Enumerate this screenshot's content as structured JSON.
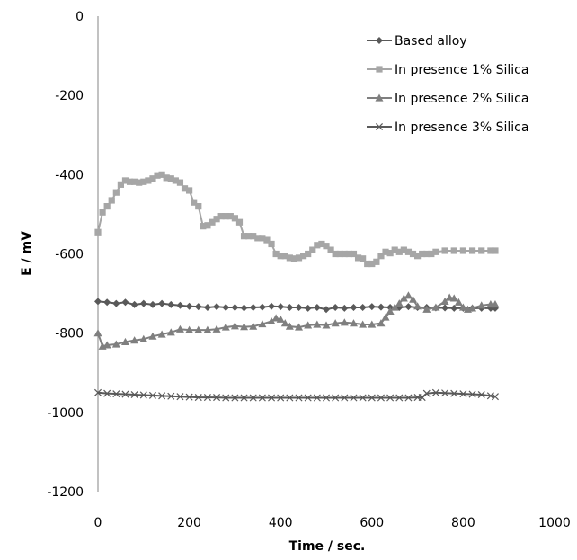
{
  "chart_data": {
    "type": "line",
    "title": "",
    "xlabel": "Time / sec.",
    "ylabel": "E / mV",
    "xlim": [
      0,
      1000
    ],
    "ylim": [
      -1200,
      0
    ],
    "xticks": [
      0,
      200,
      400,
      600,
      800,
      1000
    ],
    "yticks": [
      0,
      -200,
      -400,
      -600,
      -800,
      -1000,
      -1200
    ],
    "grid": false,
    "legend_position": "top-right",
    "series": [
      {
        "name": "Based alloy",
        "marker": "diamond",
        "color": "#595959",
        "points": [
          [
            0,
            -720
          ],
          [
            20,
            -722
          ],
          [
            40,
            -725
          ],
          [
            60,
            -722
          ],
          [
            80,
            -728
          ],
          [
            100,
            -725
          ],
          [
            120,
            -728
          ],
          [
            140,
            -725
          ],
          [
            160,
            -728
          ],
          [
            180,
            -730
          ],
          [
            200,
            -732
          ],
          [
            220,
            -733
          ],
          [
            240,
            -735
          ],
          [
            260,
            -733
          ],
          [
            280,
            -735
          ],
          [
            300,
            -735
          ],
          [
            320,
            -736
          ],
          [
            340,
            -735
          ],
          [
            360,
            -734
          ],
          [
            380,
            -732
          ],
          [
            400,
            -733
          ],
          [
            420,
            -735
          ],
          [
            440,
            -735
          ],
          [
            460,
            -737
          ],
          [
            480,
            -735
          ],
          [
            500,
            -740
          ],
          [
            520,
            -735
          ],
          [
            540,
            -737
          ],
          [
            560,
            -735
          ],
          [
            580,
            -735
          ],
          [
            600,
            -733
          ],
          [
            620,
            -734
          ],
          [
            640,
            -735
          ],
          [
            660,
            -735
          ],
          [
            680,
            -733
          ],
          [
            700,
            -735
          ],
          [
            720,
            -735
          ],
          [
            740,
            -736
          ],
          [
            760,
            -736
          ],
          [
            780,
            -737
          ],
          [
            800,
            -737
          ],
          [
            820,
            -737
          ],
          [
            840,
            -737
          ],
          [
            860,
            -737
          ],
          [
            870,
            -737
          ]
        ]
      },
      {
        "name": "In presence 1% Silica",
        "marker": "square",
        "color": "#a6a6a6",
        "points": [
          [
            0,
            -545
          ],
          [
            10,
            -495
          ],
          [
            20,
            -480
          ],
          [
            30,
            -465
          ],
          [
            40,
            -445
          ],
          [
            50,
            -425
          ],
          [
            60,
            -415
          ],
          [
            70,
            -418
          ],
          [
            80,
            -418
          ],
          [
            90,
            -420
          ],
          [
            100,
            -418
          ],
          [
            110,
            -415
          ],
          [
            120,
            -410
          ],
          [
            130,
            -402
          ],
          [
            140,
            -400
          ],
          [
            150,
            -408
          ],
          [
            160,
            -410
          ],
          [
            170,
            -415
          ],
          [
            180,
            -420
          ],
          [
            190,
            -435
          ],
          [
            200,
            -440
          ],
          [
            210,
            -470
          ],
          [
            220,
            -480
          ],
          [
            230,
            -530
          ],
          [
            240,
            -528
          ],
          [
            250,
            -520
          ],
          [
            260,
            -512
          ],
          [
            270,
            -505
          ],
          [
            280,
            -505
          ],
          [
            290,
            -505
          ],
          [
            300,
            -510
          ],
          [
            310,
            -520
          ],
          [
            320,
            -555
          ],
          [
            330,
            -555
          ],
          [
            340,
            -555
          ],
          [
            350,
            -560
          ],
          [
            360,
            -560
          ],
          [
            370,
            -565
          ],
          [
            380,
            -575
          ],
          [
            390,
            -600
          ],
          [
            400,
            -605
          ],
          [
            410,
            -605
          ],
          [
            420,
            -610
          ],
          [
            430,
            -612
          ],
          [
            440,
            -610
          ],
          [
            450,
            -605
          ],
          [
            460,
            -600
          ],
          [
            470,
            -590
          ],
          [
            480,
            -578
          ],
          [
            490,
            -575
          ],
          [
            500,
            -580
          ],
          [
            510,
            -590
          ],
          [
            520,
            -600
          ],
          [
            530,
            -600
          ],
          [
            540,
            -600
          ],
          [
            550,
            -600
          ],
          [
            560,
            -600
          ],
          [
            570,
            -610
          ],
          [
            580,
            -612
          ],
          [
            590,
            -625
          ],
          [
            600,
            -625
          ],
          [
            610,
            -620
          ],
          [
            620,
            -605
          ],
          [
            630,
            -595
          ],
          [
            640,
            -598
          ],
          [
            650,
            -590
          ],
          [
            660,
            -595
          ],
          [
            670,
            -590
          ],
          [
            680,
            -595
          ],
          [
            690,
            -600
          ],
          [
            700,
            -605
          ],
          [
            710,
            -600
          ],
          [
            720,
            -600
          ],
          [
            730,
            -600
          ],
          [
            740,
            -595
          ],
          [
            760,
            -592
          ],
          [
            780,
            -592
          ],
          [
            800,
            -592
          ],
          [
            820,
            -592
          ],
          [
            840,
            -592
          ],
          [
            860,
            -592
          ],
          [
            870,
            -592
          ]
        ]
      },
      {
        "name": "In presence 2% Silica",
        "marker": "triangle",
        "color": "#7f7f7f",
        "points": [
          [
            0,
            -800
          ],
          [
            10,
            -833
          ],
          [
            20,
            -830
          ],
          [
            40,
            -828
          ],
          [
            60,
            -822
          ],
          [
            80,
            -818
          ],
          [
            100,
            -815
          ],
          [
            120,
            -808
          ],
          [
            140,
            -803
          ],
          [
            160,
            -798
          ],
          [
            180,
            -790
          ],
          [
            200,
            -792
          ],
          [
            220,
            -792
          ],
          [
            240,
            -792
          ],
          [
            260,
            -790
          ],
          [
            280,
            -785
          ],
          [
            300,
            -782
          ],
          [
            320,
            -784
          ],
          [
            340,
            -783
          ],
          [
            360,
            -777
          ],
          [
            380,
            -770
          ],
          [
            390,
            -762
          ],
          [
            400,
            -765
          ],
          [
            410,
            -775
          ],
          [
            420,
            -783
          ],
          [
            440,
            -785
          ],
          [
            460,
            -780
          ],
          [
            480,
            -778
          ],
          [
            500,
            -780
          ],
          [
            520,
            -775
          ],
          [
            540,
            -773
          ],
          [
            560,
            -775
          ],
          [
            580,
            -778
          ],
          [
            600,
            -778
          ],
          [
            620,
            -775
          ],
          [
            630,
            -760
          ],
          [
            640,
            -745
          ],
          [
            650,
            -735
          ],
          [
            660,
            -725
          ],
          [
            670,
            -712
          ],
          [
            680,
            -705
          ],
          [
            690,
            -715
          ],
          [
            700,
            -732
          ],
          [
            720,
            -740
          ],
          [
            740,
            -735
          ],
          [
            760,
            -720
          ],
          [
            770,
            -710
          ],
          [
            780,
            -712
          ],
          [
            790,
            -722
          ],
          [
            800,
            -735
          ],
          [
            810,
            -740
          ],
          [
            820,
            -737
          ],
          [
            840,
            -730
          ],
          [
            860,
            -727
          ],
          [
            870,
            -727
          ]
        ]
      },
      {
        "name": "In presence 3% Silica",
        "marker": "x",
        "color": "#595959",
        "points": [
          [
            0,
            -950
          ],
          [
            20,
            -952
          ],
          [
            40,
            -953
          ],
          [
            60,
            -954
          ],
          [
            80,
            -955
          ],
          [
            100,
            -956
          ],
          [
            120,
            -957
          ],
          [
            140,
            -958
          ],
          [
            160,
            -959
          ],
          [
            180,
            -960
          ],
          [
            200,
            -961
          ],
          [
            220,
            -962
          ],
          [
            240,
            -962
          ],
          [
            260,
            -962
          ],
          [
            280,
            -963
          ],
          [
            300,
            -963
          ],
          [
            320,
            -963
          ],
          [
            340,
            -963
          ],
          [
            360,
            -963
          ],
          [
            380,
            -963
          ],
          [
            400,
            -963
          ],
          [
            420,
            -963
          ],
          [
            440,
            -963
          ],
          [
            460,
            -963
          ],
          [
            480,
            -963
          ],
          [
            500,
            -963
          ],
          [
            520,
            -963
          ],
          [
            540,
            -963
          ],
          [
            560,
            -963
          ],
          [
            580,
            -963
          ],
          [
            600,
            -963
          ],
          [
            620,
            -963
          ],
          [
            640,
            -963
          ],
          [
            660,
            -963
          ],
          [
            680,
            -963
          ],
          [
            700,
            -962
          ],
          [
            710,
            -962
          ],
          [
            720,
            -952
          ],
          [
            740,
            -950
          ],
          [
            760,
            -951
          ],
          [
            780,
            -952
          ],
          [
            800,
            -953
          ],
          [
            820,
            -954
          ],
          [
            840,
            -955
          ],
          [
            860,
            -958
          ],
          [
            870,
            -960
          ]
        ]
      }
    ]
  }
}
